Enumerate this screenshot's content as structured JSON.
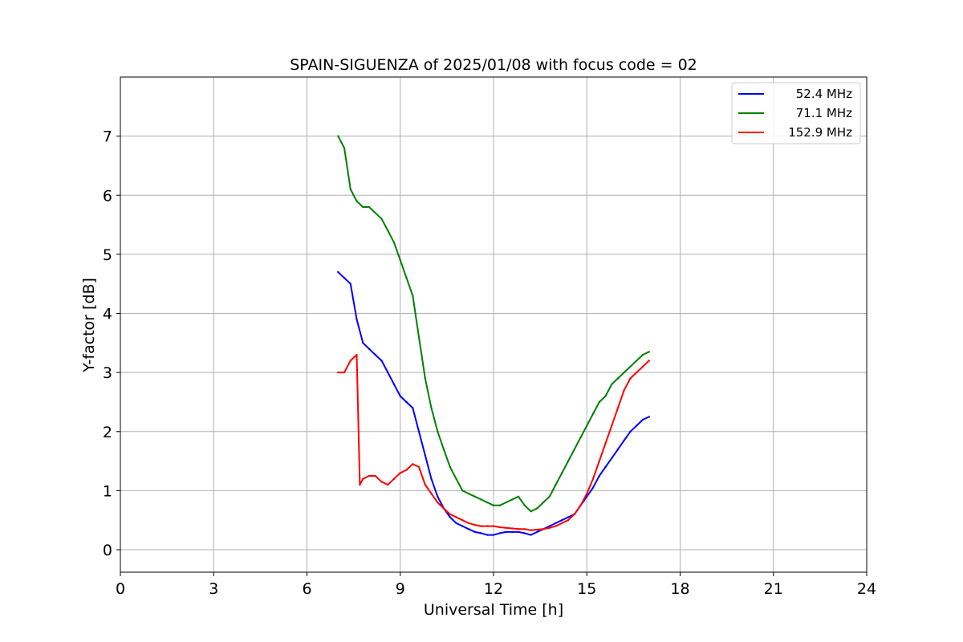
{
  "chart_data": {
    "type": "line",
    "title": "SPAIN-SIGUENZA of 2025/01/08 with focus code = 02",
    "xlabel": "Universal Time [h]",
    "ylabel": "Y-factor [dB]",
    "xlim": [
      0,
      24
    ],
    "ylim": [
      -0.38,
      8.0
    ],
    "xticks": [
      0,
      3,
      6,
      9,
      12,
      15,
      18,
      21,
      24
    ],
    "yticks": [
      0,
      1,
      2,
      3,
      4,
      5,
      6,
      7
    ],
    "grid": true,
    "legend_position": "top-right",
    "series": [
      {
        "name": "52.4 MHz",
        "color": "#0000ff",
        "x": [
          7.0,
          7.2,
          7.4,
          7.6,
          7.8,
          8.0,
          8.2,
          8.4,
          8.6,
          8.8,
          9.0,
          9.2,
          9.4,
          9.6,
          9.8,
          10.0,
          10.2,
          10.4,
          10.6,
          10.8,
          11.0,
          11.2,
          11.4,
          11.6,
          11.8,
          12.0,
          12.2,
          12.4,
          12.6,
          12.8,
          13.0,
          13.2,
          13.4,
          13.6,
          13.8,
          14.0,
          14.2,
          14.4,
          14.6,
          14.8,
          15.0,
          15.2,
          15.4,
          15.6,
          15.8,
          16.0,
          16.2,
          16.4,
          16.6,
          16.8,
          17.0
        ],
        "y": [
          4.7,
          4.6,
          4.5,
          3.9,
          3.5,
          3.4,
          3.3,
          3.2,
          3.0,
          2.8,
          2.6,
          2.5,
          2.4,
          2.0,
          1.6,
          1.2,
          0.9,
          0.7,
          0.55,
          0.45,
          0.4,
          0.35,
          0.3,
          0.28,
          0.25,
          0.25,
          0.28,
          0.3,
          0.3,
          0.3,
          0.28,
          0.25,
          0.3,
          0.35,
          0.4,
          0.45,
          0.5,
          0.55,
          0.6,
          0.75,
          0.9,
          1.05,
          1.25,
          1.4,
          1.55,
          1.7,
          1.85,
          2.0,
          2.1,
          2.2,
          2.25
        ]
      },
      {
        "name": "71.1 MHz",
        "color": "#008000",
        "x": [
          7.0,
          7.2,
          7.4,
          7.6,
          7.8,
          8.0,
          8.2,
          8.4,
          8.6,
          8.8,
          9.0,
          9.2,
          9.4,
          9.6,
          9.8,
          10.0,
          10.2,
          10.4,
          10.6,
          10.8,
          11.0,
          11.2,
          11.4,
          11.6,
          11.8,
          12.0,
          12.2,
          12.4,
          12.6,
          12.8,
          13.0,
          13.2,
          13.4,
          13.6,
          13.8,
          14.0,
          14.2,
          14.4,
          14.6,
          14.8,
          15.0,
          15.2,
          15.4,
          15.6,
          15.8,
          16.0,
          16.2,
          16.4,
          16.6,
          16.8,
          17.0
        ],
        "y": [
          7.0,
          6.8,
          6.1,
          5.9,
          5.8,
          5.8,
          5.7,
          5.6,
          5.4,
          5.2,
          4.9,
          4.6,
          4.3,
          3.6,
          2.9,
          2.4,
          2.0,
          1.7,
          1.4,
          1.2,
          1.0,
          0.95,
          0.9,
          0.85,
          0.8,
          0.75,
          0.75,
          0.8,
          0.85,
          0.9,
          0.75,
          0.65,
          0.7,
          0.8,
          0.9,
          1.1,
          1.3,
          1.5,
          1.7,
          1.9,
          2.1,
          2.3,
          2.5,
          2.6,
          2.8,
          2.9,
          3.0,
          3.1,
          3.2,
          3.3,
          3.35
        ]
      },
      {
        "name": "152.9 MHz",
        "color": "#ff0000",
        "x": [
          7.0,
          7.2,
          7.4,
          7.6,
          7.7,
          7.8,
          8.0,
          8.2,
          8.4,
          8.6,
          8.8,
          9.0,
          9.2,
          9.4,
          9.6,
          9.8,
          10.0,
          10.2,
          10.4,
          10.6,
          10.8,
          11.0,
          11.2,
          11.4,
          11.6,
          11.8,
          12.0,
          12.2,
          12.4,
          12.6,
          12.8,
          13.0,
          13.2,
          13.4,
          13.6,
          13.8,
          14.0,
          14.2,
          14.4,
          14.6,
          14.8,
          15.0,
          15.2,
          15.4,
          15.6,
          15.8,
          16.0,
          16.2,
          16.4,
          16.6,
          16.8,
          17.0
        ],
        "y": [
          3.0,
          3.0,
          3.2,
          3.3,
          1.1,
          1.2,
          1.25,
          1.25,
          1.15,
          1.1,
          1.2,
          1.3,
          1.35,
          1.45,
          1.4,
          1.1,
          0.95,
          0.8,
          0.7,
          0.6,
          0.55,
          0.5,
          0.45,
          0.42,
          0.4,
          0.4,
          0.4,
          0.38,
          0.37,
          0.36,
          0.35,
          0.35,
          0.33,
          0.34,
          0.35,
          0.37,
          0.4,
          0.45,
          0.5,
          0.6,
          0.75,
          0.95,
          1.2,
          1.5,
          1.8,
          2.1,
          2.4,
          2.7,
          2.9,
          3.0,
          3.1,
          3.2
        ]
      }
    ]
  }
}
